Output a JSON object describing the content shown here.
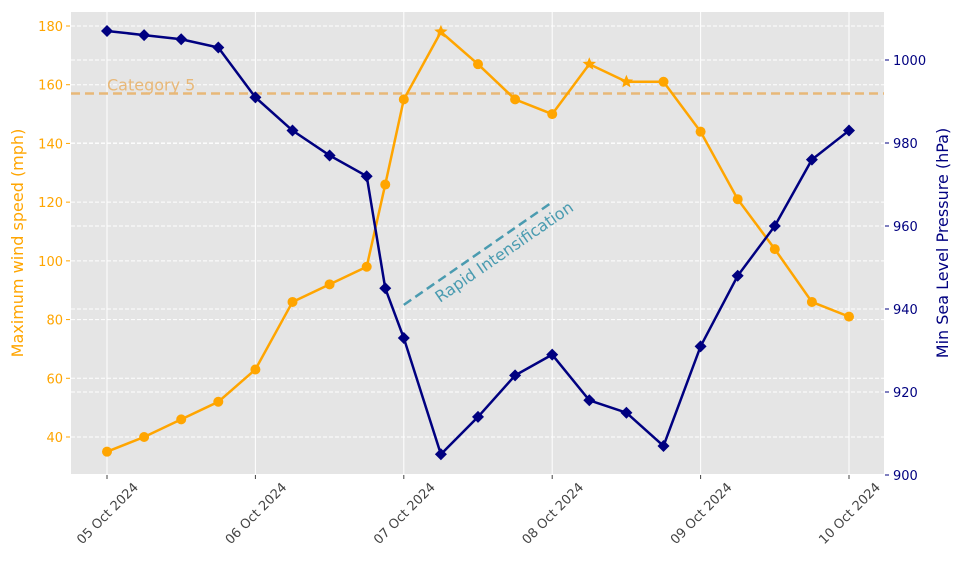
{
  "chart_data": {
    "type": "line",
    "title": "",
    "xlabel": "",
    "x_ticks": [
      "05 Oct 2024",
      "06 Oct 2024",
      "07 Oct 2024",
      "08 Oct 2024",
      "09 Oct 2024",
      "10 Oct 2024"
    ],
    "x": [
      0,
      0.25,
      0.5,
      0.75,
      1.0,
      1.25,
      1.5,
      1.75,
      1.875,
      2.0,
      2.25,
      2.5,
      2.75,
      3.0,
      3.25,
      3.5,
      3.75,
      4.0,
      4.25,
      4.5,
      4.75,
      5.0
    ],
    "x_unit": "days since 05 Oct 2024",
    "grid": true,
    "series": [
      {
        "name": "Maximum wind speed (mph)",
        "axis": "left",
        "color": "#ffa500",
        "marker": "circle",
        "star_points": [
          10,
          14,
          15
        ],
        "values": [
          35,
          40,
          46,
          52,
          63,
          86,
          92,
          98,
          126,
          155,
          178,
          167,
          155,
          150,
          167,
          161,
          161,
          144,
          121,
          104,
          86,
          81
        ]
      },
      {
        "name": "Min Sea Level Pressure (hPa)",
        "axis": "right",
        "color": "#000080",
        "marker": "diamond",
        "values": [
          1007,
          1006,
          1005,
          1003,
          991,
          983,
          977,
          972,
          945,
          933,
          905,
          914,
          924,
          929,
          918,
          915,
          907,
          931,
          948,
          960,
          976,
          983
        ]
      }
    ],
    "y_left": {
      "label": "Maximum wind speed (mph)",
      "ticks": [
        40,
        60,
        80,
        100,
        120,
        140,
        160,
        180
      ],
      "ylim": [
        27.5,
        185
      ]
    },
    "y_right": {
      "label": "Min Sea Level Pressure (hPa)",
      "ticks": [
        900,
        920,
        940,
        960,
        980,
        1000
      ],
      "ylim": [
        900,
        1011
      ]
    },
    "annotations": [
      {
        "text": "Category 5",
        "type": "hline",
        "value": 157,
        "axis": "left",
        "color": "#e8b878"
      },
      {
        "text": "Rapid Intensification",
        "type": "arrow-line",
        "from": [
          2.0,
          85
        ],
        "to": [
          3.0,
          120
        ],
        "color": "#4a9bb0"
      }
    ]
  }
}
